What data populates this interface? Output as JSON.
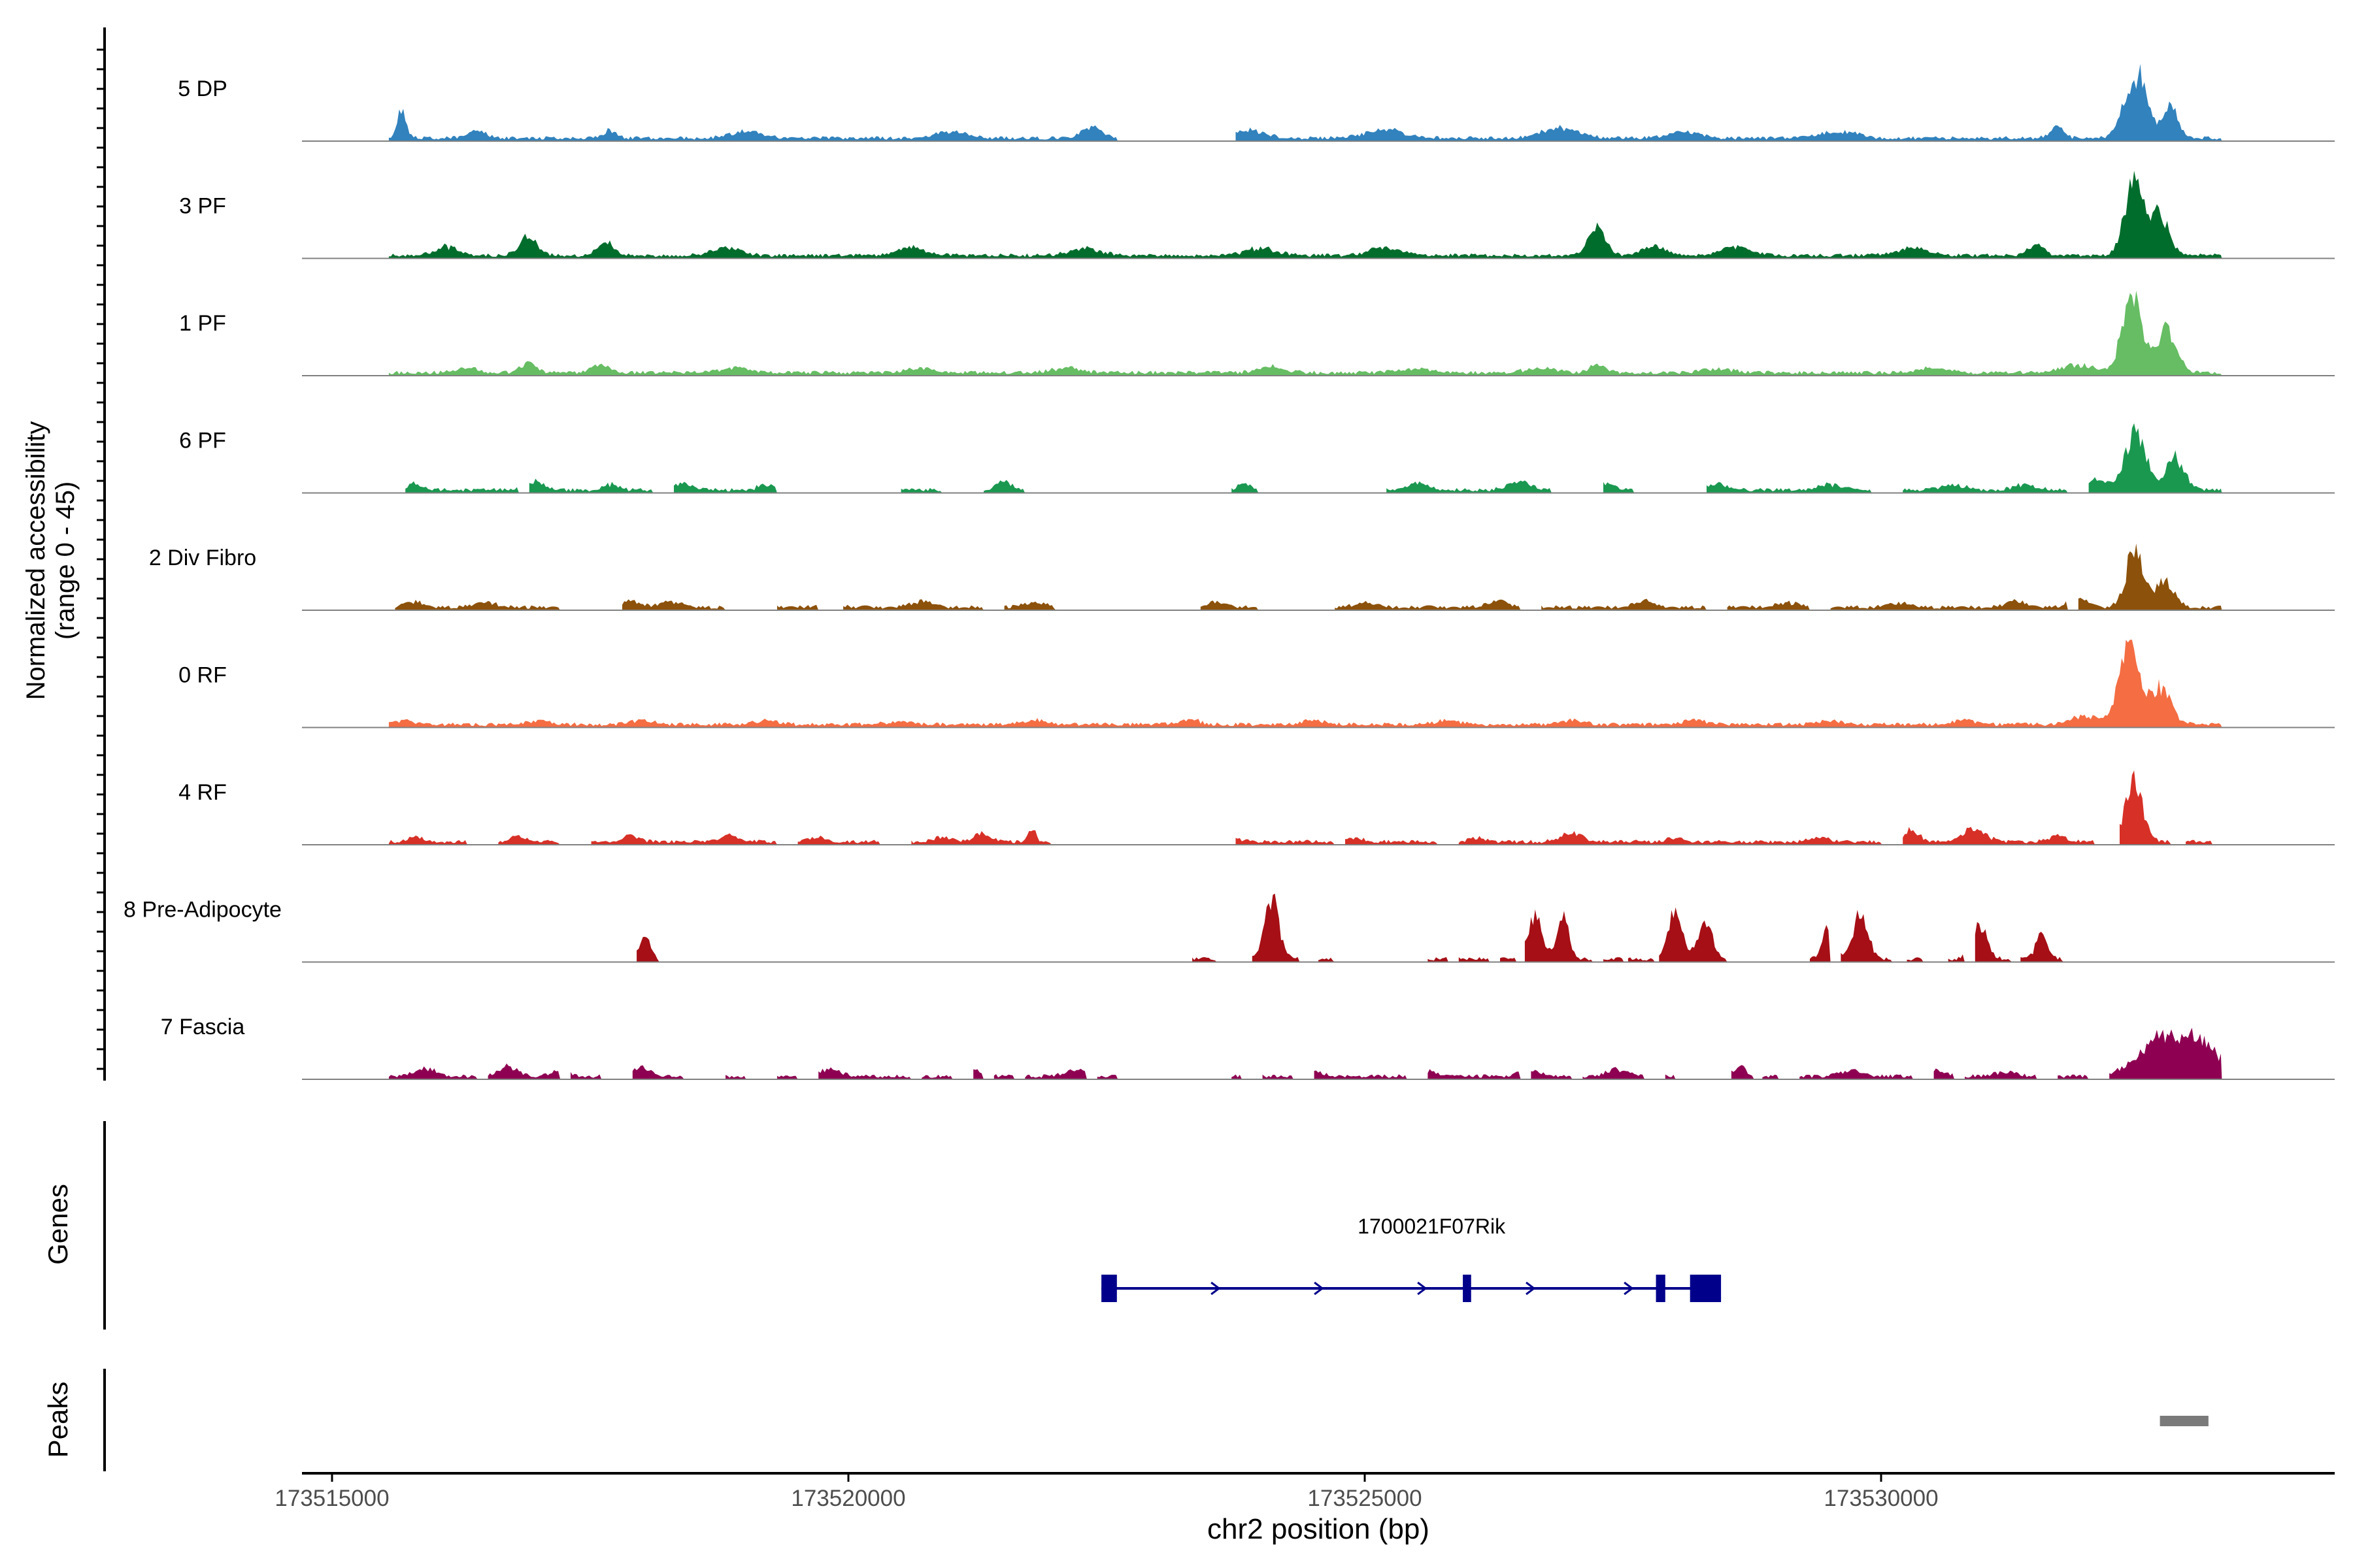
{
  "chart_data": {
    "type": "area",
    "title": "",
    "region": {
      "chromosome": "chr2",
      "start": 173514400,
      "end": 173534000
    },
    "xlabel": "chr2 position (bp)",
    "ylabel_line1": "Normalized accessibility",
    "ylabel_line2": "(range 0 - 45)",
    "ylim": [
      0,
      45
    ],
    "xticks": [
      173515000,
      173520000,
      173525000,
      173530000
    ],
    "xtick_labels": [
      "173515000",
      "173520000",
      "173525000",
      "173530000"
    ],
    "tracks": [
      {
        "name": "5 DP",
        "color": "#3182bd",
        "peaks": [
          [
            173515680,
            20,
            60
          ],
          [
            173516400,
            5,
            120
          ],
          [
            173517700,
            6,
            80
          ],
          [
            173519000,
            5,
            200
          ],
          [
            173521000,
            5,
            200
          ],
          [
            173522350,
            8,
            140
          ],
          [
            173523900,
            5,
            200
          ],
          [
            173525200,
            6,
            260
          ],
          [
            173526900,
            7,
            240
          ],
          [
            173528100,
            5,
            200
          ],
          [
            173529600,
            5,
            220
          ],
          [
            173531700,
            9,
            90
          ],
          [
            173532470,
            45,
            150
          ],
          [
            173532800,
            22,
            100
          ]
        ],
        "segments": [
          [
            173515550,
            173522600
          ],
          [
            173523750,
            173534000
          ]
        ]
      },
      {
        "name": "3 PF",
        "color": "#006d2c",
        "peaks": [
          [
            173516100,
            6,
            150
          ],
          [
            173516900,
            13,
            120
          ],
          [
            173517650,
            9,
            110
          ],
          [
            173518800,
            5,
            200
          ],
          [
            173520600,
            6,
            200
          ],
          [
            173522300,
            5,
            200
          ],
          [
            173524000,
            5,
            200
          ],
          [
            173525200,
            6,
            200
          ],
          [
            173527250,
            20,
            120
          ],
          [
            173527800,
            6,
            160
          ],
          [
            173528600,
            7,
            180
          ],
          [
            173530300,
            5,
            200
          ],
          [
            173531500,
            7,
            110
          ],
          [
            173532450,
            54,
            130
          ],
          [
            173532700,
            28,
            120
          ]
        ],
        "segments": [
          [
            173515550,
            173534000
          ]
        ]
      },
      {
        "name": "1 PF",
        "color": "#66bd63",
        "peaks": [
          [
            173516300,
            3,
            150
          ],
          [
            173516900,
            7,
            100
          ],
          [
            173517600,
            5,
            120
          ],
          [
            173518900,
            3,
            200
          ],
          [
            173520700,
            3,
            200
          ],
          [
            173522100,
            3,
            200
          ],
          [
            173524100,
            4,
            180
          ],
          [
            173525500,
            3,
            220
          ],
          [
            173526700,
            3,
            200
          ],
          [
            173527250,
            6,
            100
          ],
          [
            173528400,
            3,
            200
          ],
          [
            173530500,
            3,
            200
          ],
          [
            173531900,
            5,
            250
          ],
          [
            173532430,
            56,
            130
          ],
          [
            173532750,
            30,
            140
          ]
        ],
        "segments": [
          [
            173515550,
            173534000
          ]
        ]
      },
      {
        "name": "6 PF",
        "color": "#1a9850",
        "peaks": [
          [
            173515800,
            5,
            80
          ],
          [
            173516950,
            6,
            120
          ],
          [
            173517700,
            4,
            100
          ],
          [
            173518400,
            4,
            120
          ],
          [
            173519200,
            4,
            100
          ],
          [
            173520300,
            4,
            100
          ],
          [
            173521500,
            7,
            100
          ],
          [
            173523830,
            4,
            80
          ],
          [
            173525500,
            5,
            150
          ],
          [
            173526500,
            6,
            150
          ],
          [
            173527300,
            5,
            150
          ],
          [
            173528400,
            4,
            150
          ],
          [
            173529500,
            4,
            150
          ],
          [
            173530700,
            4,
            150
          ],
          [
            173531400,
            4,
            150
          ],
          [
            173532100,
            7,
            150
          ],
          [
            173532470,
            41,
            140
          ],
          [
            173532850,
            22,
            120
          ]
        ],
        "segments": [
          [
            173515700,
            173516800
          ],
          [
            173516900,
            173518100
          ],
          [
            173518300,
            173519300
          ],
          [
            173520500,
            173520900
          ],
          [
            173521300,
            173521700
          ],
          [
            173523700,
            173523950
          ],
          [
            173525200,
            173526800
          ],
          [
            173527300,
            173527600
          ],
          [
            173528300,
            173529900
          ],
          [
            173530200,
            173531800
          ],
          [
            173532000,
            173534000
          ]
        ]
      },
      {
        "name": "2 Div Fibro",
        "color": "#8c510a",
        "peaks": [
          [
            173515800,
            4,
            120
          ],
          [
            173516500,
            3,
            150
          ],
          [
            173517900,
            4,
            150
          ],
          [
            173518300,
            4,
            150
          ],
          [
            173519800,
            3,
            150
          ],
          [
            173520700,
            4,
            150
          ],
          [
            173521800,
            3,
            150
          ],
          [
            173523550,
            4,
            120
          ],
          [
            173525000,
            3,
            150
          ],
          [
            173526300,
            4,
            150
          ],
          [
            173527700,
            4,
            150
          ],
          [
            173529100,
            3,
            150
          ],
          [
            173530200,
            3,
            150
          ],
          [
            173531300,
            4,
            150
          ],
          [
            173531900,
            7,
            120
          ],
          [
            173532460,
            40,
            120
          ],
          [
            173532750,
            18,
            120
          ]
        ],
        "segments": [
          [
            173515600,
            173517200
          ],
          [
            173517800,
            173518800
          ],
          [
            173519300,
            173519700
          ],
          [
            173519950,
            173521300
          ],
          [
            173521500,
            173522000
          ],
          [
            173523400,
            173523950
          ],
          [
            173524700,
            173526500
          ],
          [
            173526700,
            173528300
          ],
          [
            173528500,
            173529300
          ],
          [
            173529500,
            173531800
          ],
          [
            173531900,
            173534000
          ]
        ]
      },
      {
        "name": "0 RF",
        "color": "#f46d43",
        "peaks": [
          [
            173515700,
            3,
            120
          ],
          [
            173517000,
            3,
            150
          ],
          [
            173518000,
            3,
            150
          ],
          [
            173519200,
            3,
            150
          ],
          [
            173520500,
            3,
            150
          ],
          [
            173521800,
            3,
            150
          ],
          [
            173523300,
            3,
            150
          ],
          [
            173524500,
            3,
            150
          ],
          [
            173525800,
            3,
            150
          ],
          [
            173527000,
            3,
            150
          ],
          [
            173528200,
            3,
            150
          ],
          [
            173529500,
            3,
            150
          ],
          [
            173530800,
            3,
            150
          ],
          [
            173532000,
            6,
            200
          ],
          [
            173532400,
            60,
            130
          ],
          [
            173532700,
            25,
            150
          ]
        ],
        "segments": [
          [
            173515550,
            173534000
          ]
        ]
      },
      {
        "name": "4 RF",
        "color": "#d73027",
        "peaks": [
          [
            173515800,
            4,
            100
          ],
          [
            173516800,
            4,
            120
          ],
          [
            173517900,
            4,
            120
          ],
          [
            173518850,
            5,
            120
          ],
          [
            173519700,
            3,
            120
          ],
          [
            173520900,
            3,
            120
          ],
          [
            173521300,
            6,
            120
          ],
          [
            173521780,
            9,
            50
          ],
          [
            173523700,
            3,
            120
          ],
          [
            173524900,
            3,
            120
          ],
          [
            173526100,
            3,
            120
          ],
          [
            173527000,
            6,
            150
          ],
          [
            173528000,
            3,
            120
          ],
          [
            173529400,
            3,
            120
          ],
          [
            173530300,
            8,
            100
          ],
          [
            173530900,
            9,
            150
          ],
          [
            173531700,
            4,
            120
          ],
          [
            173532450,
            43,
            120
          ]
        ],
        "segments": [
          [
            173515550,
            173516300
          ],
          [
            173516600,
            173517200
          ],
          [
            173517500,
            173519300
          ],
          [
            173519500,
            173520300
          ],
          [
            173520600,
            173521950
          ],
          [
            173523750,
            173524700
          ],
          [
            173524800,
            173525700
          ],
          [
            173525900,
            173530000
          ],
          [
            173530200,
            173532050
          ],
          [
            173532300,
            173532800
          ],
          [
            173532950,
            173533200
          ]
        ]
      },
      {
        "name": "8 Pre-Adipocyte",
        "color": "#a50f15",
        "peaks": [
          [
            173518030,
            17,
            70
          ],
          [
            173524100,
            42,
            100
          ],
          [
            173526650,
            28,
            100
          ],
          [
            173526920,
            30,
            80
          ],
          [
            173528000,
            32,
            100
          ],
          [
            173528300,
            24,
            100
          ],
          [
            173529500,
            25,
            80
          ],
          [
            173529800,
            32,
            100
          ],
          [
            173530950,
            25,
            100
          ],
          [
            173531550,
            16,
            80
          ]
        ],
        "segments": [
          [
            173517950,
            173518150
          ],
          [
            173523330,
            173523550
          ],
          [
            173523900,
            173524350
          ],
          [
            173524550,
            173524700
          ],
          [
            173525600,
            173525800
          ],
          [
            173525900,
            173526200
          ],
          [
            173526300,
            173526450
          ],
          [
            173526550,
            173527200
          ],
          [
            173527300,
            173527500
          ],
          [
            173527550,
            173527800
          ],
          [
            173527850,
            173528500
          ],
          [
            173529300,
            173529500
          ],
          [
            173529600,
            173530100
          ],
          [
            173530250,
            173530400
          ],
          [
            173530650,
            173530800
          ],
          [
            173530900,
            173531250
          ],
          [
            173531350,
            173531500
          ],
          [
            173531500,
            173531750
          ]
        ]
      },
      {
        "name": "7 Fascia",
        "color": "#8e0152",
        "peaks": [
          [
            173515900,
            5,
            150
          ],
          [
            173516700,
            7,
            120
          ],
          [
            173517200,
            5,
            100
          ],
          [
            173518000,
            6,
            120
          ],
          [
            173519800,
            5,
            150
          ],
          [
            173521200,
            4,
            150
          ],
          [
            173522200,
            4,
            150
          ],
          [
            173524500,
            3,
            150
          ],
          [
            173525600,
            4,
            150
          ],
          [
            173526600,
            4,
            150
          ],
          [
            173527450,
            5,
            150
          ],
          [
            173528500,
            3,
            150
          ],
          [
            173528650,
            8,
            50
          ],
          [
            173529700,
            4,
            150
          ],
          [
            173530500,
            5,
            150
          ],
          [
            173531200,
            3,
            150
          ],
          [
            173532700,
            26,
            300
          ],
          [
            173533100,
            22,
            250
          ]
        ],
        "segments": [
          [
            173515550,
            173516400
          ],
          [
            173516500,
            173517200
          ],
          [
            173517300,
            173517600
          ],
          [
            173517900,
            173518400
          ],
          [
            173518800,
            173519000
          ],
          [
            173519300,
            173519500
          ],
          [
            173519700,
            173520600
          ],
          [
            173520700,
            173521000
          ],
          [
            173521200,
            173521300
          ],
          [
            173521400,
            173521600
          ],
          [
            173521700,
            173522300
          ],
          [
            173522400,
            173522600
          ],
          [
            173523700,
            173523800
          ],
          [
            173524000,
            173524300
          ],
          [
            173524500,
            173525400
          ],
          [
            173525600,
            173526500
          ],
          [
            173526600,
            173527000
          ],
          [
            173527100,
            173527700
          ],
          [
            173527900,
            173528000
          ],
          [
            173528550,
            173528750
          ],
          [
            173528850,
            173529000
          ],
          [
            173529200,
            173530300
          ],
          [
            173530500,
            173530700
          ],
          [
            173530800,
            173531500
          ],
          [
            173531700,
            173532000
          ],
          [
            173532200,
            173534000
          ]
        ]
      }
    ],
    "genes": [
      {
        "name": "1700021F07Rik",
        "color": "#00008b",
        "strand": "+",
        "start": 173522450,
        "end": 173528400,
        "exons": [
          [
            173522450,
            173522600
          ],
          [
            173525950,
            173526030
          ],
          [
            173527820,
            173527910
          ],
          [
            173528150,
            173528450
          ]
        ],
        "arrows": [
          173522450,
          173523450,
          173524450,
          173525450,
          173526500,
          173527450
        ]
      }
    ],
    "peaks_track": {
      "label": "Peaks",
      "color": "#7a7a7a",
      "regions": [
        [
          173532700,
          173533170
        ]
      ]
    },
    "genes_label": "Genes"
  }
}
